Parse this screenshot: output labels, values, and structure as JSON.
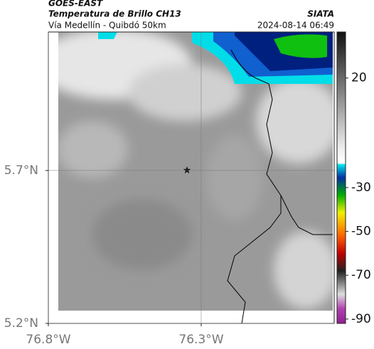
{
  "header": {
    "source": "GOES-EAST",
    "title": "Temperatura de Brillo CH13",
    "subtitle": "Vía Medellín - Quibdó 50km",
    "agency": "SIATA",
    "timestamp": "2024-08-14 06:49"
  },
  "map": {
    "xlim": [
      -76.8,
      -75.865
    ],
    "ylim": [
      5.2,
      6.153
    ],
    "xticks": [
      {
        "value": -76.8,
        "label": "76.8°W"
      },
      {
        "value": -76.3,
        "label": "76.3°W"
      }
    ],
    "yticks": [
      {
        "value": 5.7,
        "label": "5.7°N"
      },
      {
        "value": 5.2,
        "label": "5.2°N"
      }
    ]
  },
  "colorbar": {
    "lim": [
      -92,
      41
    ],
    "ticks": [
      20,
      -30,
      -50,
      -70,
      -90
    ]
  }
}
